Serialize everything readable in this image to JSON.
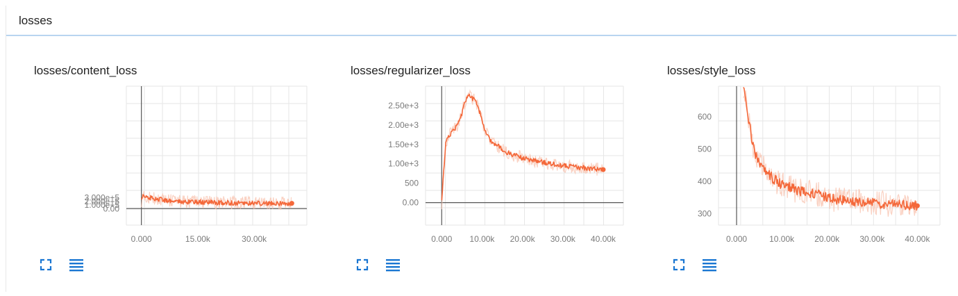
{
  "pane": {
    "title": "losses"
  },
  "icons": {
    "expand": "expand-icon",
    "menu": "menu-lines-icon"
  },
  "colors": {
    "line": "#f4683a",
    "raw": "#f9c5b3",
    "icon": "#1976d2",
    "grid": "#e6e6e6",
    "axis": "#555555"
  },
  "chart_data": [
    {
      "type": "line",
      "title": "losses/content_loss",
      "xlim": [
        -4000,
        44000
      ],
      "ylim": [
        -450000,
        3350000
      ],
      "xticks": [
        0,
        15000,
        30000
      ],
      "xtick_labels": [
        "0.000",
        "15.00k",
        "30.00k"
      ],
      "yticks": [
        0,
        100000,
        200000,
        300000
      ],
      "ytick_labels": [
        "0.00",
        "1.000e+5",
        "2.000e+5",
        "3.000e+5"
      ],
      "series": [
        {
          "values": [
            [
              0,
              220000
            ],
            [
              300,
              340000
            ],
            [
              1000,
              330000
            ],
            [
              2000,
              310000
            ],
            [
              3000,
              290000
            ],
            [
              4000,
              270000
            ],
            [
              5000,
              250000
            ],
            [
              6000,
              235000
            ],
            [
              8000,
              220000
            ],
            [
              10000,
              200000
            ],
            [
              12000,
              190000
            ],
            [
              14000,
              185000
            ],
            [
              16000,
              178000
            ],
            [
              18000,
              172000
            ],
            [
              20000,
              168000
            ],
            [
              22000,
              165000
            ],
            [
              24000,
              160000
            ],
            [
              26000,
              158000
            ],
            [
              28000,
              155000
            ],
            [
              30000,
              152000
            ],
            [
              32000,
              150000
            ],
            [
              34000,
              149000
            ],
            [
              36000,
              148000
            ],
            [
              38000,
              147000
            ],
            [
              40000,
              146000
            ]
          ]
        }
      ]
    },
    {
      "type": "line",
      "title": "losses/regularizer_loss",
      "xlim": [
        -4000,
        45000
      ],
      "ylim": [
        -580,
        3000
      ],
      "xticks": [
        0,
        10000,
        20000,
        30000,
        40000
      ],
      "xtick_labels": [
        "0.000",
        "10.00k",
        "20.00k",
        "30.00k",
        "40.00k"
      ],
      "yticks": [
        0,
        500,
        1000,
        1500,
        2000,
        2500
      ],
      "ytick_labels": [
        "0.00",
        "500",
        "1.00e+3",
        "1.50e+3",
        "2.00e+3",
        "2.50e+3"
      ],
      "series": [
        {
          "values": [
            [
              0,
              0
            ],
            [
              500,
              800
            ],
            [
              1000,
              1500
            ],
            [
              1500,
              1700
            ],
            [
              2500,
              1800
            ],
            [
              3500,
              1950
            ],
            [
              4500,
              2100
            ],
            [
              5500,
              2500
            ],
            [
              6500,
              2750
            ],
            [
              7500,
              2700
            ],
            [
              8500,
              2600
            ],
            [
              9500,
              2300
            ],
            [
              10500,
              1900
            ],
            [
              12000,
              1600
            ],
            [
              14000,
              1450
            ],
            [
              16000,
              1300
            ],
            [
              18000,
              1220
            ],
            [
              20000,
              1150
            ],
            [
              22000,
              1100
            ],
            [
              24000,
              1060
            ],
            [
              26000,
              1020
            ],
            [
              28000,
              980
            ],
            [
              30000,
              950
            ],
            [
              32000,
              930
            ],
            [
              34000,
              910
            ],
            [
              36000,
              890
            ],
            [
              38000,
              870
            ],
            [
              40000,
              850
            ]
          ]
        }
      ]
    },
    {
      "type": "line",
      "title": "losses/style_loss",
      "xlim": [
        -4000,
        45000
      ],
      "ylim": [
        265,
        695
      ],
      "xticks": [
        0,
        10000,
        20000,
        30000,
        40000
      ],
      "xtick_labels": [
        "0.000",
        "10.00k",
        "20.00k",
        "30.00k",
        "40.00k"
      ],
      "yticks": [
        300,
        400,
        500,
        600
      ],
      "ytick_labels": [
        "300",
        "400",
        "500",
        "600"
      ],
      "series": [
        {
          "values": [
            [
              1500,
              700
            ],
            [
              2000,
              650
            ],
            [
              3000,
              560
            ],
            [
              4000,
              490
            ],
            [
              5000,
              460
            ],
            [
              6000,
              440
            ],
            [
              8000,
              410
            ],
            [
              10000,
              390
            ],
            [
              12000,
              380
            ],
            [
              14000,
              370
            ],
            [
              16000,
              365
            ],
            [
              18000,
              360
            ],
            [
              20000,
              350
            ],
            [
              22000,
              345
            ],
            [
              24000,
              340
            ],
            [
              26000,
              338
            ],
            [
              28000,
              335
            ],
            [
              30000,
              333
            ],
            [
              32000,
              330
            ],
            [
              34000,
              330
            ],
            [
              36000,
              328
            ],
            [
              38000,
              326
            ],
            [
              40000,
              325
            ]
          ]
        }
      ]
    }
  ]
}
